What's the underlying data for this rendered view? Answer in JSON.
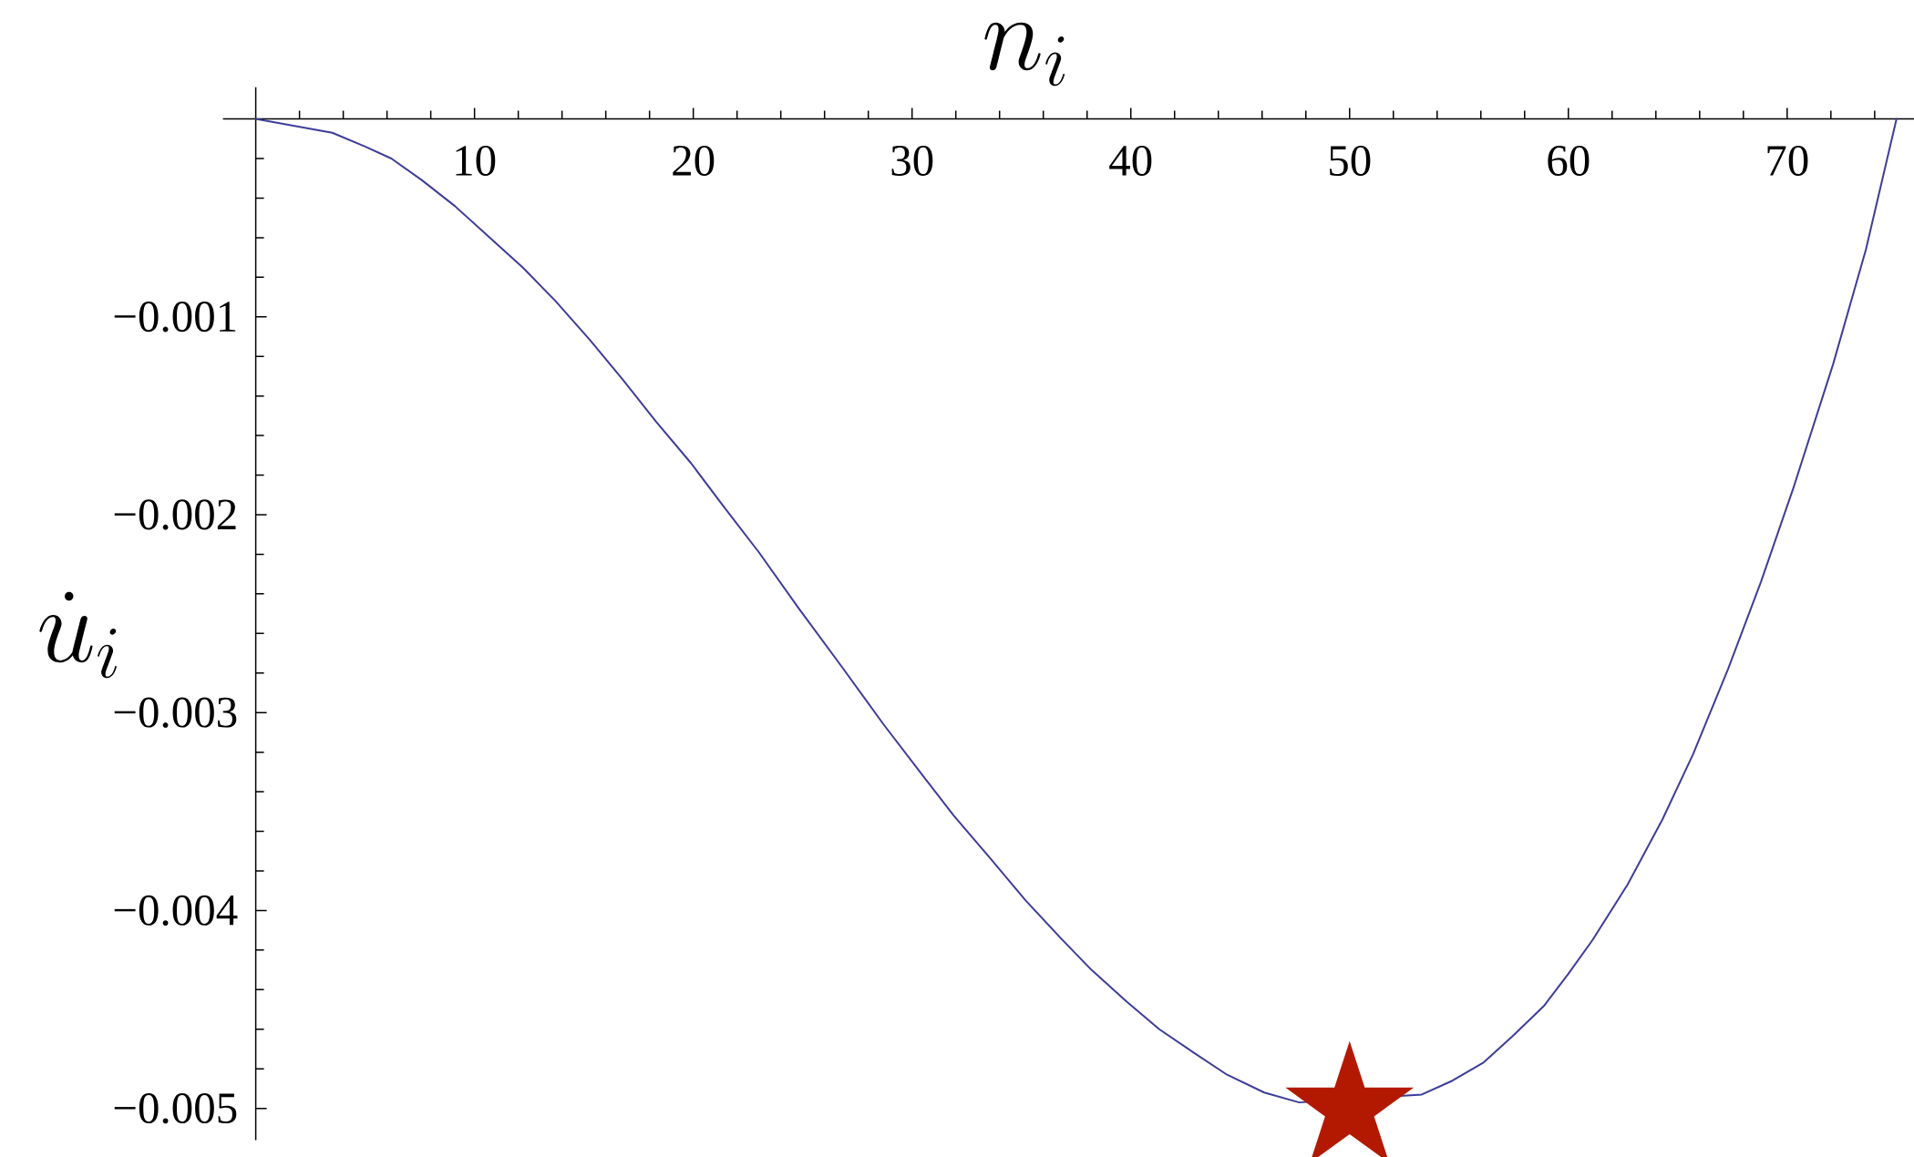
{
  "chart_data": {
    "type": "line",
    "xlabel": "n_i",
    "ylabel": "\\dot{u}_i",
    "xlim": [
      -1.5,
      75.9
    ],
    "ylim": [
      -0.00516,
      0.00016
    ],
    "xticks": [
      {
        "value": 2,
        "label": null
      },
      {
        "value": 4,
        "label": null
      },
      {
        "value": 6,
        "label": null
      },
      {
        "value": 8,
        "label": null
      },
      10,
      {
        "value": 12,
        "label": null
      },
      {
        "value": 14,
        "label": null
      },
      {
        "value": 16,
        "label": null
      },
      {
        "value": 18,
        "label": null
      },
      20,
      {
        "value": 22,
        "label": null
      },
      {
        "value": 24,
        "label": null
      },
      {
        "value": 26,
        "label": null
      },
      {
        "value": 28,
        "label": null
      },
      30,
      {
        "value": 32,
        "label": null
      },
      {
        "value": 34,
        "label": null
      },
      {
        "value": 36,
        "label": null
      },
      {
        "value": 38,
        "label": null
      },
      40,
      {
        "value": 42,
        "label": null
      },
      {
        "value": 44,
        "label": null
      },
      {
        "value": 46,
        "label": null
      },
      {
        "value": 48,
        "label": null
      },
      50,
      {
        "value": 52,
        "label": null
      },
      {
        "value": 54,
        "label": null
      },
      {
        "value": 56,
        "label": null
      },
      {
        "value": 58,
        "label": null
      },
      60,
      {
        "value": 62,
        "label": null
      },
      {
        "value": 64,
        "label": null
      },
      {
        "value": 66,
        "label": null
      },
      {
        "value": 68,
        "label": null
      },
      70,
      {
        "value": 72,
        "label": null
      },
      {
        "value": 74,
        "label": null
      }
    ],
    "yticks": [
      {
        "value": -0.0002,
        "label": null
      },
      {
        "value": -0.0004,
        "label": null
      },
      {
        "value": -0.0006,
        "label": null
      },
      {
        "value": -0.0008,
        "label": null
      },
      {
        "value": -0.001,
        "label": "−0.001"
      },
      {
        "value": -0.0012,
        "label": null
      },
      {
        "value": -0.0014,
        "label": null
      },
      {
        "value": -0.0016,
        "label": null
      },
      {
        "value": -0.0018,
        "label": null
      },
      {
        "value": -0.002,
        "label": "−0.002"
      },
      {
        "value": -0.0022,
        "label": null
      },
      {
        "value": -0.0024,
        "label": null
      },
      {
        "value": -0.0026,
        "label": null
      },
      {
        "value": -0.0028,
        "label": null
      },
      {
        "value": -0.003,
        "label": "−0.003"
      },
      {
        "value": -0.0032,
        "label": null
      },
      {
        "value": -0.0034,
        "label": null
      },
      {
        "value": -0.0036,
        "label": null
      },
      {
        "value": -0.0038,
        "label": null
      },
      {
        "value": -0.004,
        "label": "−0.004"
      },
      {
        "value": -0.0042,
        "label": null
      },
      {
        "value": -0.0044,
        "label": null
      },
      {
        "value": -0.0046,
        "label": null
      },
      {
        "value": -0.0048,
        "label": null
      },
      {
        "value": -0.005,
        "label": "−0.005"
      }
    ],
    "series": [
      {
        "color": "#3d3d99",
        "marker": "none",
        "x": [
          0,
          3.5,
          5.0,
          6.2,
          7.6,
          9.1,
          10.6,
          12.2,
          13.7,
          15.3,
          16.8,
          18.3,
          19.9,
          21.4,
          23.0,
          24.8,
          26.8,
          28.7,
          30.5,
          31.9,
          33.6,
          35.2,
          36.8,
          38.2,
          39.8,
          41.3,
          42.9,
          44.4,
          46.1,
          47.7,
          53.3,
          54.7,
          56.1,
          57.5,
          58.9,
          60.0,
          61.1,
          62.7,
          64.3,
          65.7,
          67.3,
          68.8,
          70.3,
          72.1,
          73.6,
          75
        ],
        "values": [
          0,
          -7e-05,
          -0.00014,
          -0.0002,
          -0.00031,
          -0.00044,
          -0.00059,
          -0.00075,
          -0.00092,
          -0.00112,
          -0.00132,
          -0.00153,
          -0.00174,
          -0.00196,
          -0.00219,
          -0.00247,
          -0.00277,
          -0.00306,
          -0.00332,
          -0.00352,
          -0.00374,
          -0.00395,
          -0.00414,
          -0.0043,
          -0.00446,
          -0.0046,
          -0.00472,
          -0.00483,
          -0.00492,
          -0.00497,
          -0.00493,
          -0.00486,
          -0.00477,
          -0.00463,
          -0.00448,
          -0.00432,
          -0.00415,
          -0.00387,
          -0.00354,
          -0.00321,
          -0.00278,
          -0.00234,
          -0.00186,
          -0.00124,
          -0.00066,
          0
        ]
      },
      {
        "type": "scatter",
        "color": "#b31900",
        "marker": "star",
        "x": [
          50
        ],
        "values": [
          -0.005
        ]
      }
    ]
  }
}
